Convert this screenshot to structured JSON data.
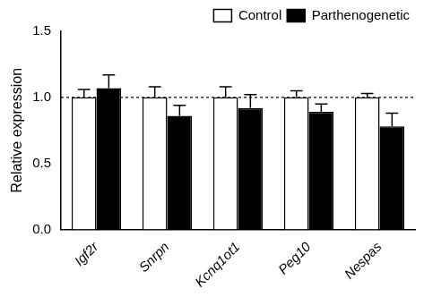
{
  "chart_data": {
    "type": "bar",
    "y_label": "Relative expression",
    "categories": [
      "Igf2r",
      "Snrpn",
      "Kcnq1ot1",
      "Peg10",
      "Nespas"
    ],
    "series": [
      {
        "name": "Control",
        "color": "#ffffff",
        "values": [
          1.0,
          1.0,
          1.0,
          1.0,
          1.0
        ],
        "errors": [
          0.06,
          0.08,
          0.08,
          0.05,
          0.03
        ]
      },
      {
        "name": "Parthenogenetic",
        "color": "#000000",
        "values": [
          1.07,
          0.86,
          0.92,
          0.89,
          0.78
        ],
        "errors": [
          0.1,
          0.08,
          0.1,
          0.06,
          0.1
        ]
      }
    ],
    "ylim": [
      0,
      1.5
    ],
    "yticks": [
      {
        "value": 0,
        "label": "0.0"
      },
      {
        "value": 0.5,
        "label": "0.5"
      },
      {
        "value": 1,
        "label": "1.0"
      },
      {
        "value": 1.5,
        "label": "1.5"
      }
    ],
    "grid": false,
    "legend": "top right",
    "reference_line": 1
  }
}
